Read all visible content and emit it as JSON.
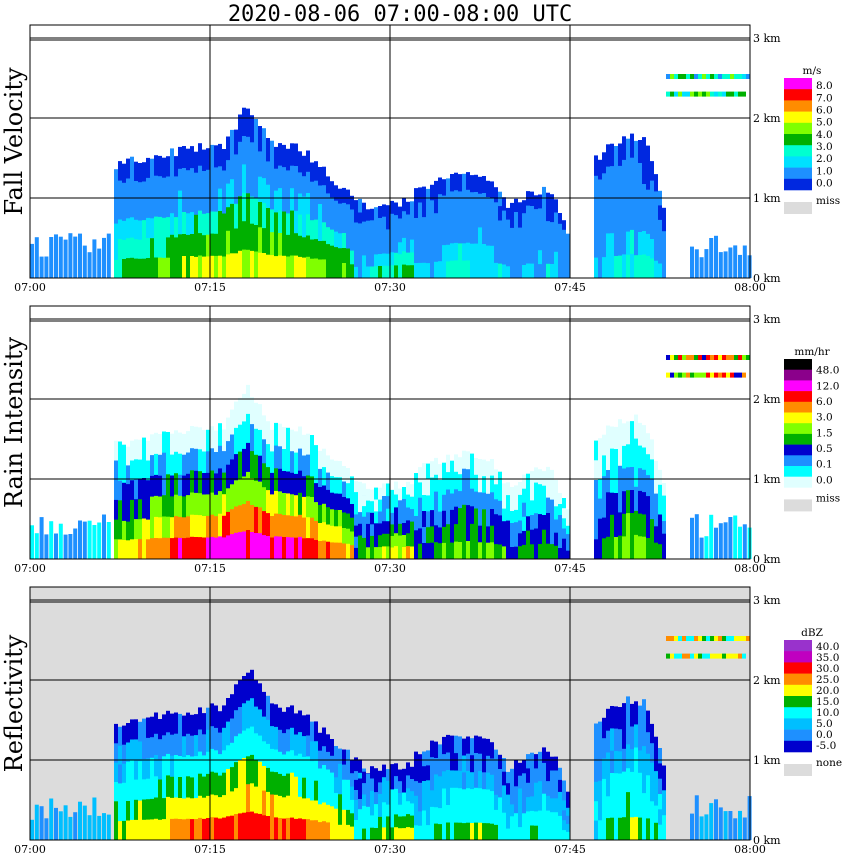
{
  "chart_data": {
    "type": "heatmap",
    "title": "2020-08-06   07:00-08:00 UTC",
    "x_ticks": [
      "07:00",
      "07:15",
      "07:30",
      "07:45",
      "08:00"
    ],
    "y_ticks": [
      "0 km",
      "1 km",
      "2 km",
      "3 km"
    ],
    "grid": true,
    "panels": [
      {
        "ylabel": "Fall Velocity",
        "unit": "m/s",
        "missing_label": "miss",
        "missing_color": "#dcdcdc",
        "background": "#ffffff",
        "legend_levels": [
          "8.0",
          "7.0",
          "6.0",
          "5.0",
          "4.0",
          "3.0",
          "2.0",
          "1.0",
          "0.0"
        ],
        "legend_colors": [
          "#ff00ff",
          "#ff0000",
          "#ff8c00",
          "#ffff00",
          "#80ff00",
          "#00b000",
          "#00ffd0",
          "#00e0ff",
          "#1e90ff",
          "#0028e0"
        ]
      },
      {
        "ylabel": "Rain Intensity",
        "unit": "mm/hr",
        "missing_label": "miss",
        "missing_color": "#dcdcdc",
        "background": "#ffffff",
        "legend_levels": [
          "48.0",
          "12.0",
          "6.0",
          "3.0",
          "1.5",
          "0.5",
          "0.1",
          "0.0"
        ],
        "legend_colors": [
          "#000000",
          "#8b008b",
          "#ff00ff",
          "#ff0000",
          "#ff8c00",
          "#ffff00",
          "#80ff00",
          "#00b000",
          "#0000cd",
          "#1e90ff",
          "#00ffff",
          "#e0ffff"
        ]
      },
      {
        "ylabel": "Reflectivity",
        "unit": "dBZ",
        "missing_label": "none",
        "missing_color": "#dcdcdc",
        "background": "#dcdcdc",
        "legend_levels": [
          "40.0",
          "35.0",
          "30.0",
          "25.0",
          "20.0",
          "15.0",
          "10.0",
          "5.0",
          "0.0",
          "-5.0"
        ],
        "legend_colors": [
          "#9932cc",
          "#c000c0",
          "#ff0000",
          "#ff8c00",
          "#ffff00",
          "#00b000",
          "#00ffff",
          "#00bfff",
          "#1e90ff",
          "#0000cd"
        ]
      }
    ],
    "precip_events": [
      {
        "start": "07:07",
        "end": "07:29",
        "top_km": 1.67,
        "peak": "07:18",
        "peak_km": 2.15,
        "max_level": 9
      },
      {
        "start": "07:27",
        "end": "07:37",
        "top_km": 0.95,
        "max_level": 6
      },
      {
        "start": "07:32",
        "end": "07:41",
        "top_km": 1.3,
        "max_level": 5
      },
      {
        "start": "07:40",
        "end": "07:45",
        "top_km": 1.1,
        "max_level": 4
      },
      {
        "start": "07:47",
        "end": "07:53",
        "top_km": 1.75,
        "max_level": 5
      }
    ],
    "sample_strips": [
      {
        "alt_km": 2.55
      },
      {
        "alt_km": 2.33
      }
    ]
  }
}
